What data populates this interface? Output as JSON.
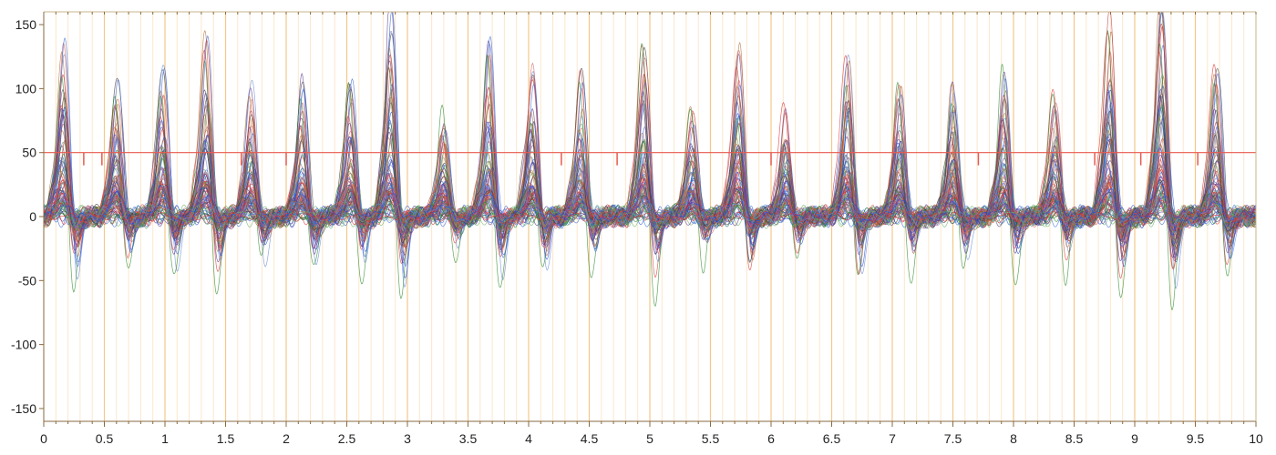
{
  "chart_data": {
    "type": "line",
    "title": "",
    "xlabel": "",
    "ylabel": "",
    "xlim": [
      0,
      10
    ],
    "ylim": [
      -160,
      160
    ],
    "x_ticks": [
      "0",
      "0.5",
      "1",
      "1.5",
      "2",
      "2.5",
      "3",
      "3.5",
      "4",
      "4.5",
      "5",
      "5.5",
      "6",
      "6.5",
      "7",
      "7.5",
      "8",
      "8.5",
      "9",
      "9.5",
      "10"
    ],
    "y_ticks": [
      "150",
      "100",
      "50",
      "0",
      "-50",
      "-100",
      "-150"
    ],
    "x_tick_values": [
      0,
      0.5,
      1,
      1.5,
      2,
      2.5,
      3,
      3.5,
      4,
      4.5,
      5,
      5.5,
      6,
      6.5,
      7,
      7.5,
      8,
      8.5,
      9,
      9.5,
      10
    ],
    "y_tick_values": [
      150,
      100,
      50,
      0,
      -50,
      -100,
      -150
    ],
    "grid": {
      "major_vertical_every": 0.5,
      "minor_vertical_every": 0.1,
      "major_color": "#f3c88a",
      "minor_color": "#fbe7cc"
    },
    "threshold": {
      "y": 50,
      "color": "#e85a4f"
    },
    "event_markers": [
      0.33,
      0.48,
      1.63,
      2.0,
      4.27,
      4.73,
      6.0,
      7.71,
      8.67,
      9.05,
      9.52
    ],
    "series_colors": [
      "#e03030",
      "#2050e0",
      "#2a8a2a",
      "#5a3a8a",
      "#b0703a",
      "#3a6ad8",
      "#c03a3a",
      "#404040",
      "#6a8ad8",
      "#d06060",
      "#6ab06a"
    ],
    "beats": [
      {
        "t": 0.16,
        "amp": 117
      },
      {
        "t": 0.6,
        "amp": 100
      },
      {
        "t": 0.98,
        "amp": 107
      },
      {
        "t": 1.34,
        "amp": 125
      },
      {
        "t": 1.71,
        "amp": 93
      },
      {
        "t": 2.13,
        "amp": 94
      },
      {
        "t": 2.53,
        "amp": 100
      },
      {
        "t": 2.86,
        "amp": 143
      },
      {
        "t": 3.3,
        "amp": 74
      },
      {
        "t": 3.67,
        "amp": 114
      },
      {
        "t": 4.03,
        "amp": 104
      },
      {
        "t": 4.43,
        "amp": 100
      },
      {
        "t": 4.95,
        "amp": 119
      },
      {
        "t": 5.35,
        "amp": 77
      },
      {
        "t": 5.73,
        "amp": 129
      },
      {
        "t": 6.12,
        "amp": 78
      },
      {
        "t": 6.63,
        "amp": 121
      },
      {
        "t": 7.06,
        "amp": 95
      },
      {
        "t": 7.5,
        "amp": 96
      },
      {
        "t": 7.92,
        "amp": 97
      },
      {
        "t": 8.34,
        "amp": 88
      },
      {
        "t": 8.79,
        "amp": 139
      },
      {
        "t": 9.22,
        "amp": 160
      },
      {
        "t": 9.67,
        "amp": 102
      }
    ],
    "series_count": 90
  }
}
